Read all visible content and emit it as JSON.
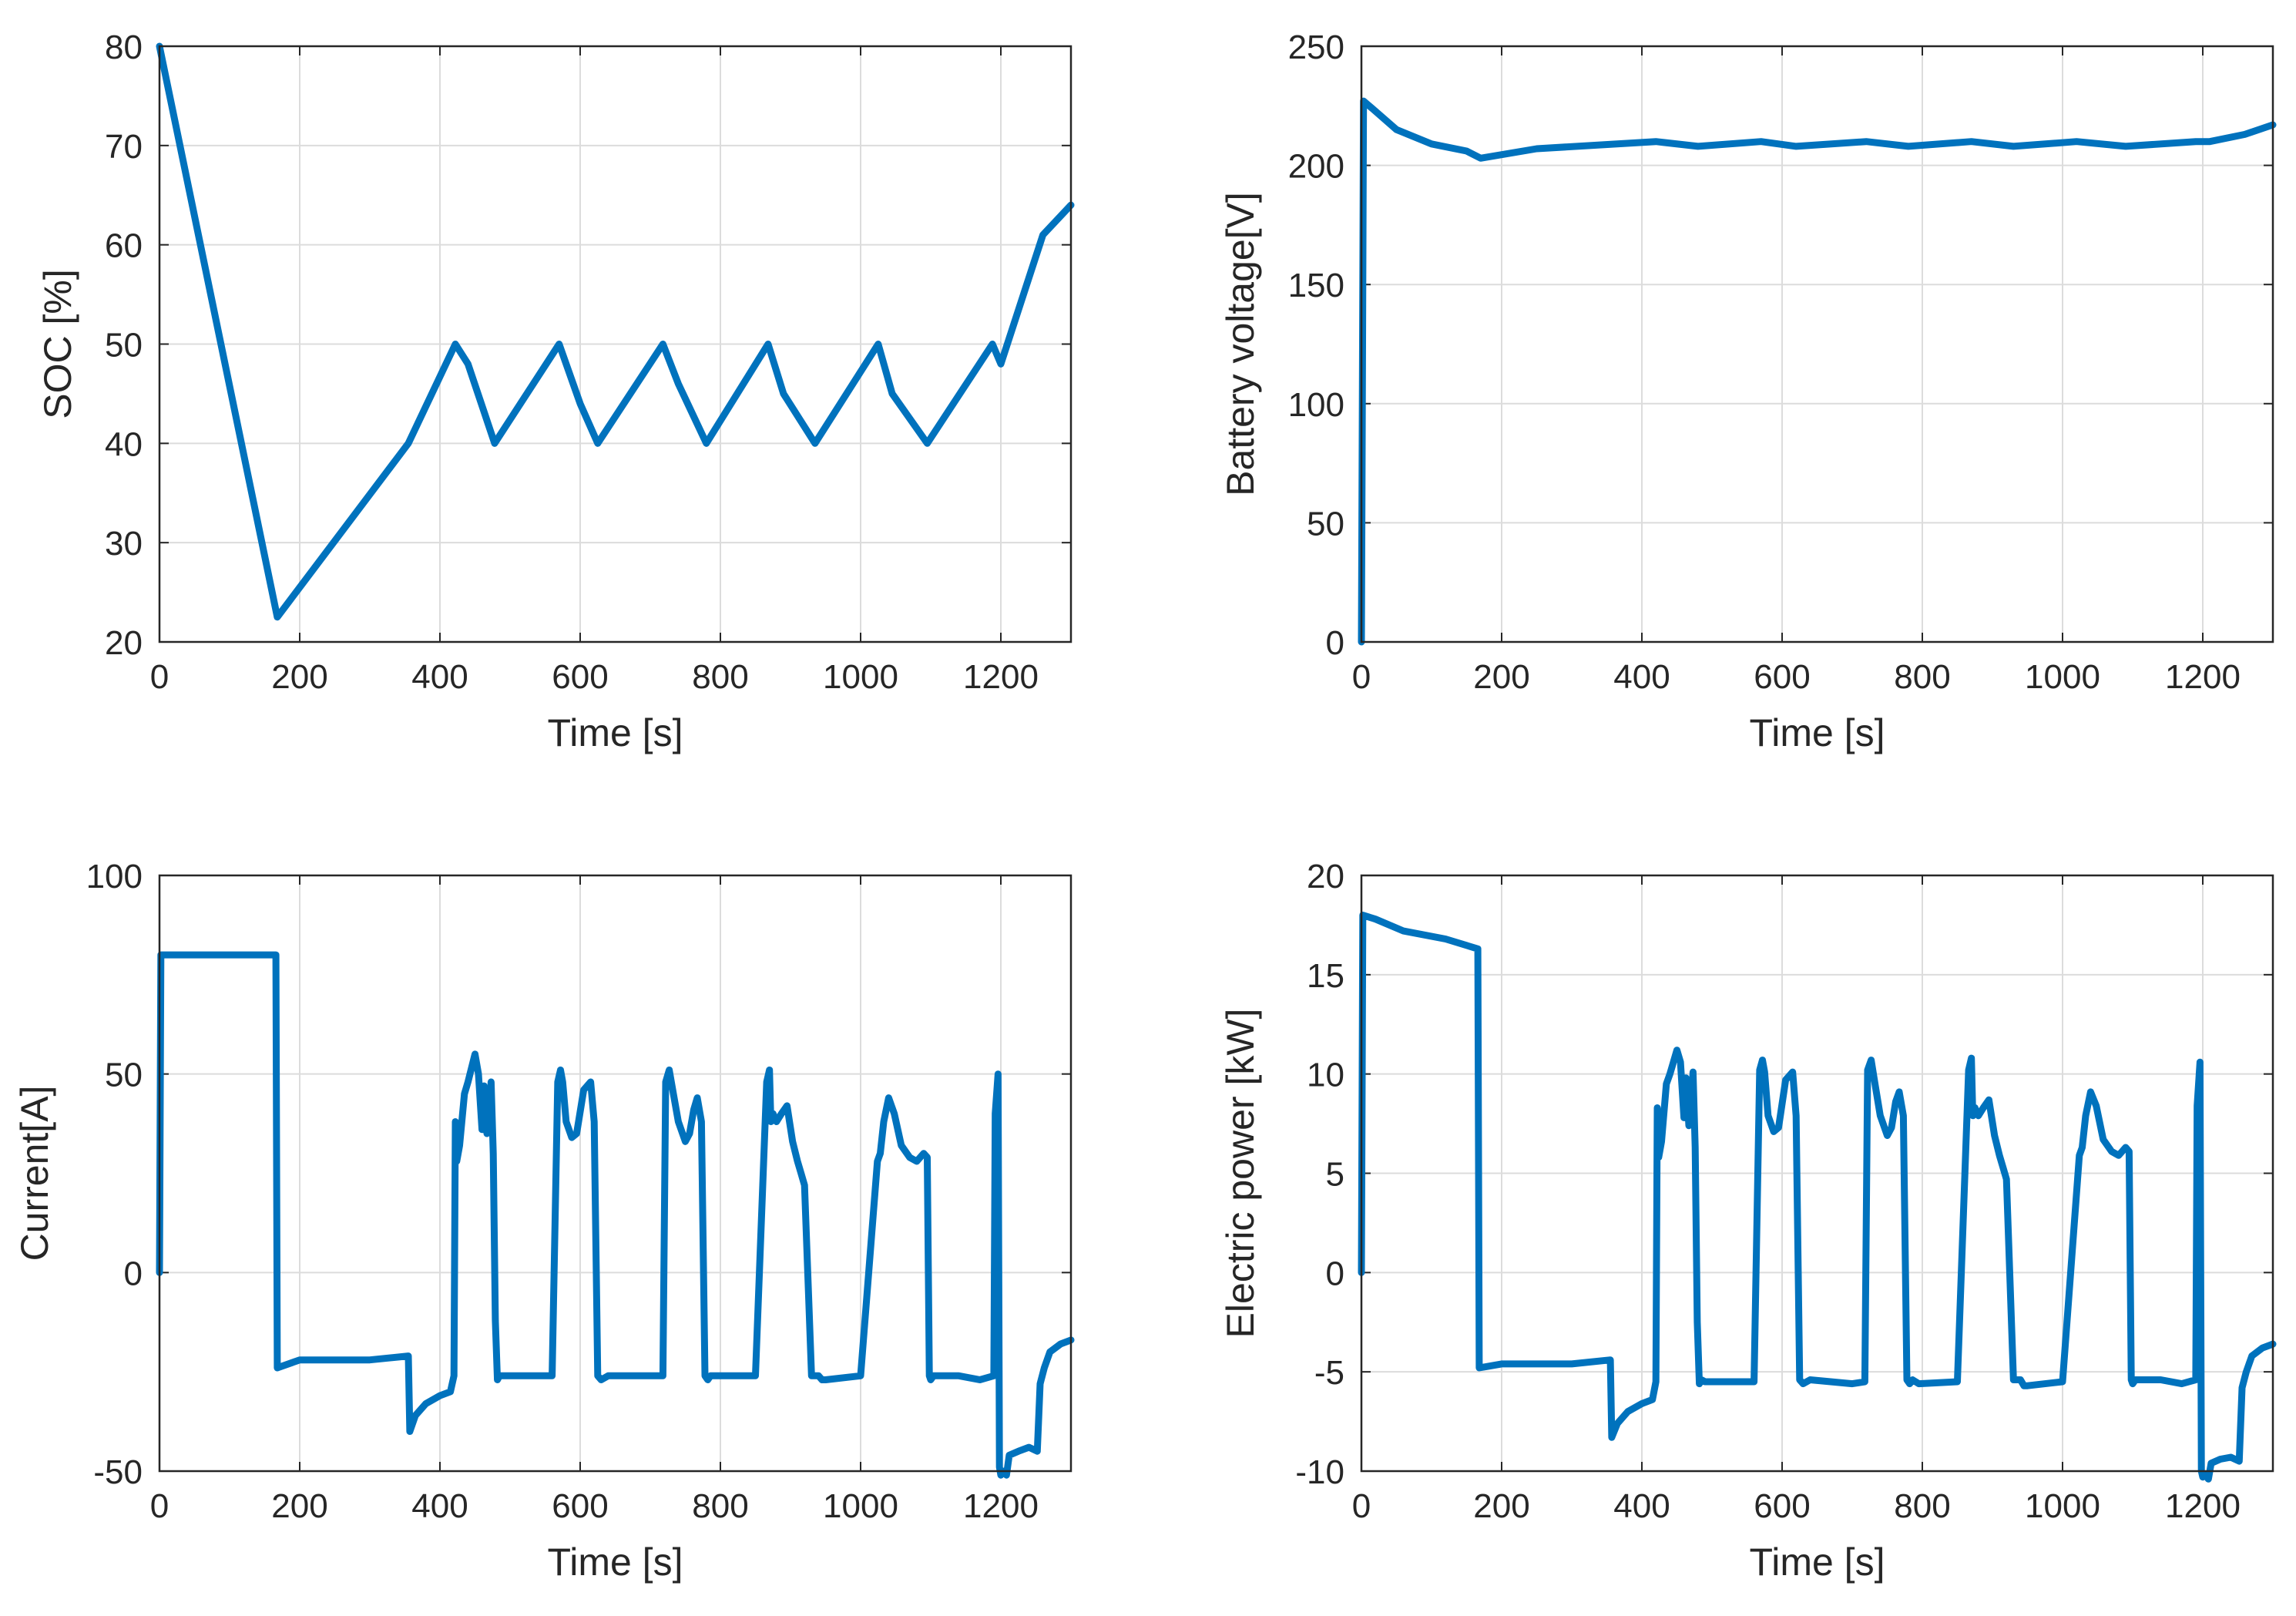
{
  "chart_data": [
    {
      "type": "line",
      "id": "soc",
      "xlabel": "Time [s]",
      "ylabel": "SOC [%]",
      "xlim": [
        0,
        1300
      ],
      "ylim": [
        20,
        80
      ],
      "xticks": [
        0,
        200,
        400,
        600,
        800,
        1000,
        1200
      ],
      "xtick_labels": [
        "0",
        "200",
        "400",
        "600",
        "800",
        "1000",
        "1200"
      ],
      "yticks": [
        20,
        30,
        40,
        50,
        60,
        70,
        80
      ],
      "ytick_labels": [
        "20",
        "30",
        "40",
        "50",
        "60",
        "70",
        "80"
      ],
      "grid": true,
      "color": "#0072BD",
      "series": [
        {
          "name": "SOC",
          "x": [
            0,
            168,
            355,
            422,
            440,
            478,
            570,
            600,
            625,
            718,
            740,
            780,
            868,
            890,
            935,
            1025,
            1045,
            1095,
            1188,
            1200,
            1260,
            1300
          ],
          "y": [
            80,
            22.5,
            40,
            50,
            48,
            40,
            50,
            44,
            40,
            50,
            46,
            40,
            50,
            45,
            40,
            50,
            45,
            40,
            50,
            48,
            61,
            64
          ]
        }
      ]
    },
    {
      "type": "line",
      "id": "voltage",
      "xlabel": "Time [s]",
      "ylabel": "Battery voltage[V]",
      "xlim": [
        0,
        1300
      ],
      "ylim": [
        0,
        250
      ],
      "xticks": [
        0,
        200,
        400,
        600,
        800,
        1000,
        1200
      ],
      "xtick_labels": [
        "0",
        "200",
        "400",
        "600",
        "800",
        "1000",
        "1200"
      ],
      "yticks": [
        0,
        50,
        100,
        150,
        200,
        250
      ],
      "ytick_labels": [
        "0",
        "50",
        "100",
        "150",
        "200",
        "250"
      ],
      "grid": true,
      "color": "#0072BD",
      "series": [
        {
          "name": "Voltage",
          "x": [
            0,
            3,
            15,
            50,
            100,
            150,
            170,
            250,
            420,
            480,
            570,
            620,
            720,
            780,
            870,
            930,
            1020,
            1090,
            1190,
            1210,
            1260,
            1300
          ],
          "y": [
            0,
            227,
            224,
            215,
            209,
            206,
            203,
            207,
            210,
            208,
            210,
            208,
            210,
            208,
            210,
            208,
            210,
            208,
            210,
            210,
            213,
            217
          ]
        }
      ]
    },
    {
      "type": "line",
      "id": "current",
      "xlabel": "Time [s]",
      "ylabel": "Current[A]",
      "xlim": [
        0,
        1300
      ],
      "ylim": [
        -50,
        100
      ],
      "xticks": [
        0,
        200,
        400,
        600,
        800,
        1000,
        1200
      ],
      "xtick_labels": [
        "0",
        "200",
        "400",
        "600",
        "800",
        "1000",
        "1200"
      ],
      "yticks": [
        -50,
        0,
        50,
        100
      ],
      "ytick_labels": [
        "-50",
        "0",
        "50",
        "100"
      ],
      "grid": true,
      "color": "#0072BD",
      "series": [
        {
          "name": "Current",
          "x": [
            0,
            2,
            166,
            168,
            200,
            300,
            355,
            357,
            365,
            380,
            400,
            415,
            420,
            422,
            424,
            428,
            435,
            440,
            450,
            455,
            460,
            463,
            467,
            470,
            473,
            476,
            479,
            482,
            485,
            490,
            560,
            568,
            572,
            575,
            580,
            588,
            595,
            605,
            615,
            620,
            625,
            630,
            640,
            700,
            718,
            722,
            727,
            733,
            740,
            750,
            756,
            762,
            767,
            773,
            778,
            782,
            786,
            795,
            850,
            866,
            870,
            872,
            875,
            880,
            887,
            895,
            903,
            910,
            915,
            920,
            930,
            940,
            945,
            950,
            1000,
            1024,
            1028,
            1033,
            1040,
            1048,
            1058,
            1070,
            1080,
            1090,
            1095,
            1098,
            1100,
            1104,
            1140,
            1170,
            1190,
            1192,
            1196,
            1198,
            1200,
            1204,
            1208,
            1212,
            1225,
            1240,
            1252,
            1256,
            1262,
            1270,
            1285,
            1300
          ],
          "y": [
            0,
            80,
            80,
            -24,
            -22,
            -22,
            -21,
            -40,
            -36,
            -33,
            -31,
            -30,
            -26,
            38,
            28,
            32,
            45,
            48,
            55,
            50,
            36,
            47,
            35,
            40,
            48,
            30,
            -12,
            -27,
            -26,
            -26,
            -26,
            48,
            51,
            48,
            38,
            34,
            35,
            46,
            48,
            38,
            -26,
            -27,
            -26,
            -26,
            -26,
            48,
            51,
            45,
            38,
            33,
            35,
            41,
            44,
            38,
            -26,
            -27,
            -26,
            -26,
            -26,
            48,
            51,
            38,
            40,
            38,
            40,
            42,
            33,
            28,
            25,
            22,
            -26,
            -26,
            -27,
            -27,
            -26,
            28,
            30,
            38,
            44,
            40,
            32,
            29,
            28,
            30,
            29,
            -26,
            -27,
            -26,
            -26,
            -27,
            -26,
            40,
            50,
            -49,
            -51,
            -50,
            -51,
            -46,
            -45,
            -44,
            -45,
            -28,
            -24,
            -20,
            -18,
            -17
          ]
        }
      ]
    },
    {
      "type": "line",
      "id": "power",
      "xlabel": "Time [s]",
      "ylabel": "Electric power [kW]",
      "xlim": [
        0,
        1300
      ],
      "ylim": [
        -10,
        20
      ],
      "xticks": [
        0,
        200,
        400,
        600,
        800,
        1000,
        1200
      ],
      "xtick_labels": [
        "0",
        "200",
        "400",
        "600",
        "800",
        "1000",
        "1200"
      ],
      "yticks": [
        -10,
        -5,
        0,
        5,
        10,
        15,
        20
      ],
      "ytick_labels": [
        "-10",
        "-5",
        "0",
        "5",
        "10",
        "15",
        "20"
      ],
      "grid": true,
      "color": "#0072BD",
      "series": [
        {
          "name": "Power",
          "x": [
            0,
            2,
            20,
            60,
            120,
            166,
            168,
            200,
            300,
            355,
            357,
            365,
            380,
            400,
            415,
            420,
            422,
            424,
            428,
            435,
            440,
            450,
            455,
            460,
            463,
            467,
            470,
            473,
            476,
            479,
            482,
            485,
            490,
            560,
            568,
            572,
            575,
            580,
            588,
            595,
            605,
            615,
            620,
            625,
            630,
            640,
            700,
            718,
            722,
            727,
            733,
            740,
            750,
            756,
            762,
            767,
            773,
            778,
            782,
            786,
            795,
            850,
            866,
            870,
            872,
            875,
            880,
            887,
            895,
            903,
            910,
            915,
            920,
            930,
            940,
            945,
            950,
            1000,
            1024,
            1028,
            1033,
            1040,
            1048,
            1058,
            1070,
            1080,
            1090,
            1095,
            1098,
            1100,
            1104,
            1140,
            1170,
            1190,
            1192,
            1196,
            1198,
            1200,
            1204,
            1208,
            1212,
            1225,
            1240,
            1252,
            1256,
            1262,
            1270,
            1285,
            1300
          ],
          "y": [
            0,
            18,
            17.8,
            17.2,
            16.8,
            16.3,
            -4.8,
            -4.6,
            -4.6,
            -4.4,
            -8.3,
            -7.6,
            -7.0,
            -6.6,
            -6.4,
            -5.5,
            8.3,
            5.8,
            6.6,
            9.5,
            10.0,
            11.2,
            10.6,
            7.8,
            9.8,
            7.4,
            8.4,
            10.1,
            6.3,
            -2.5,
            -5.6,
            -5.4,
            -5.5,
            -5.5,
            10.2,
            10.7,
            10.1,
            7.9,
            7.1,
            7.3,
            9.7,
            10.1,
            7.9,
            -5.4,
            -5.6,
            -5.4,
            -5.6,
            -5.5,
            10.2,
            10.7,
            9.4,
            7.9,
            6.9,
            7.3,
            8.6,
            9.1,
            7.9,
            -5.4,
            -5.6,
            -5.4,
            -5.6,
            -5.5,
            10.2,
            10.8,
            7.9,
            8.3,
            7.9,
            8.3,
            8.7,
            6.9,
            5.9,
            5.3,
            4.7,
            -5.4,
            -5.4,
            -5.7,
            -5.7,
            -5.5,
            5.9,
            6.3,
            7.9,
            9.1,
            8.4,
            6.7,
            6.1,
            5.9,
            6.3,
            6.1,
            -5.4,
            -5.6,
            -5.4,
            -5.4,
            -5.6,
            -5.4,
            8.4,
            10.6,
            -10.0,
            -10.3,
            -10.2,
            -10.4,
            -9.6,
            -9.4,
            -9.3,
            -9.5,
            -5.8,
            -5.0,
            -4.2,
            -3.8,
            -3.6
          ]
        }
      ]
    }
  ]
}
